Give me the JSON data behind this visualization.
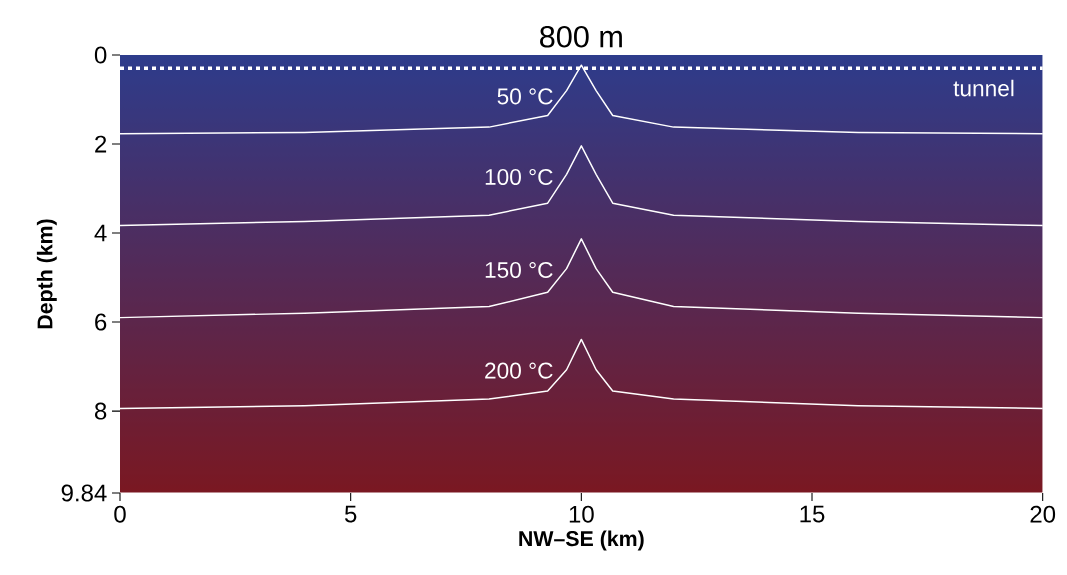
{
  "chart_data": {
    "type": "line",
    "title": "800 m",
    "xlabel": "**NW–SE (km)**",
    "ylabel": "**Depth (km)**",
    "x": [
      0,
      4,
      8,
      9.27,
      9.68,
      10,
      10.32,
      10.68,
      12,
      16,
      20
    ],
    "series": [
      {
        "name": "50 °C",
        "color": "#ffffff",
        "values": [
          1.77,
          1.74,
          1.62,
          1.36,
          0.8,
          0.23,
          0.8,
          1.36,
          1.62,
          1.74,
          1.77
        ]
      },
      {
        "name": "100 °C",
        "color": "#ffffff",
        "values": [
          3.83,
          3.74,
          3.6,
          3.33,
          2.68,
          2.04,
          2.68,
          3.33,
          3.6,
          3.74,
          3.83
        ]
      },
      {
        "name": "150 °C",
        "color": "#ffffff",
        "values": [
          5.9,
          5.8,
          5.65,
          5.33,
          4.8,
          4.13,
          4.8,
          5.33,
          5.65,
          5.8,
          5.9
        ]
      },
      {
        "name": "200 °C",
        "color": "#ffffff",
        "values": [
          7.94,
          7.88,
          7.73,
          7.55,
          7.07,
          6.39,
          7.07,
          7.55,
          7.73,
          7.88,
          7.94
        ]
      }
    ],
    "xlim": [
      0,
      20
    ],
    "ylim": [
      9.84,
      0
    ],
    "xticks": [
      0,
      5,
      10,
      15,
      20
    ],
    "yticks": [
      0,
      2,
      4,
      6,
      8,
      9.84
    ],
    "ref_lines": [
      {
        "axis": "y",
        "value": 0.3,
        "label": "tunnel",
        "color": "#ffffff",
        "line_style": "dotted"
      }
    ],
    "grid": false,
    "legend": false,
    "marker": "none",
    "line_style": "solid"
  }
}
